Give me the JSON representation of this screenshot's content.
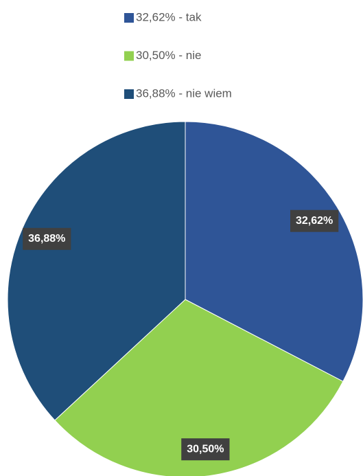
{
  "chart_data": {
    "type": "pie",
    "categories": [
      "32,62% - tak",
      "30,50% - nie",
      "36,88% - nie wiem"
    ],
    "values": [
      32.62,
      30.5,
      36.88
    ],
    "value_labels": [
      "32,62%",
      "30,50%",
      "36,88%"
    ],
    "colors": [
      "#2f5597",
      "#92d050",
      "#1f4e79"
    ],
    "legend": "top"
  }
}
